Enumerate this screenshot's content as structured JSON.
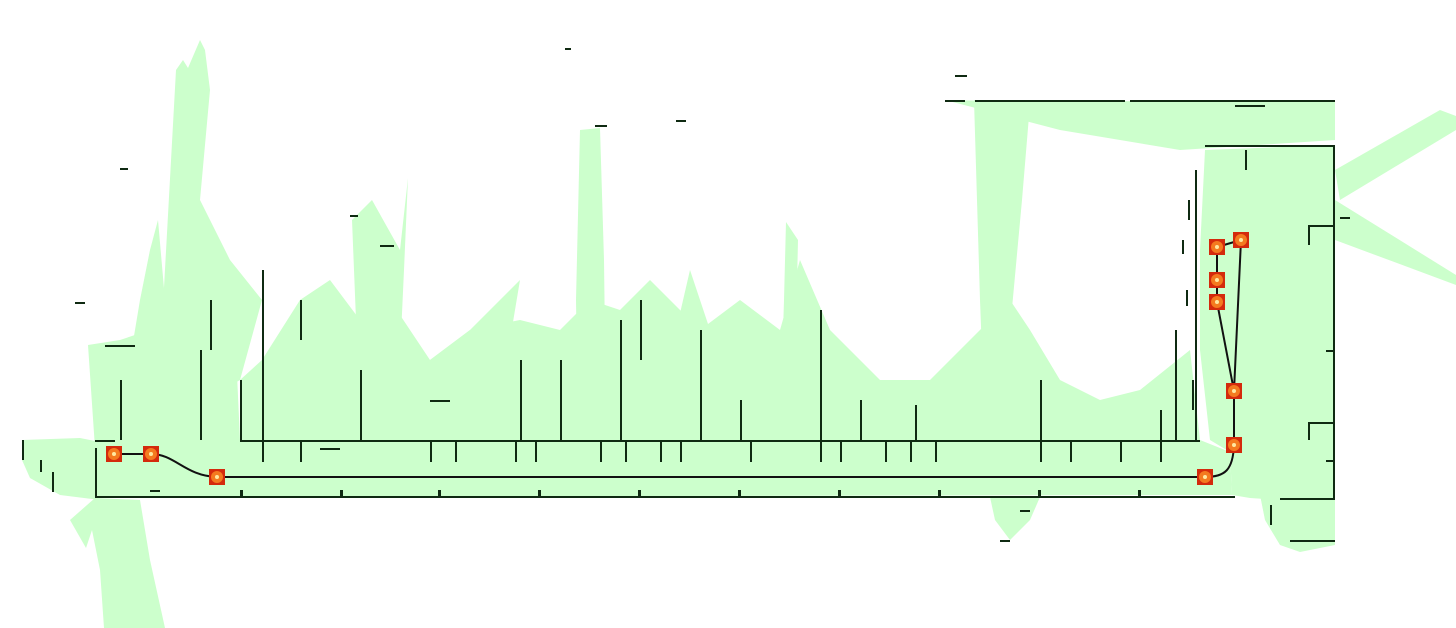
{
  "map": {
    "colors": {
      "background": "#ffffff",
      "free_space": "#ccffcc",
      "walls": "#0f2a12",
      "route": "#111111",
      "waypoint_frame": "#d42a0c",
      "waypoint_fill": "#f47a1f",
      "waypoint_center": "#ffe8a0"
    },
    "waypoint_icon": "target-marker-icon",
    "waypoints": [
      {
        "id": "wp-1"
      },
      {
        "id": "wp-2"
      },
      {
        "id": "wp-3"
      },
      {
        "id": "wp-4"
      },
      {
        "id": "wp-5"
      },
      {
        "id": "wp-6"
      },
      {
        "id": "wp-7"
      },
      {
        "id": "wp-8"
      },
      {
        "id": "wp-9"
      },
      {
        "id": "wp-10"
      },
      {
        "id": "wp-11"
      }
    ]
  }
}
